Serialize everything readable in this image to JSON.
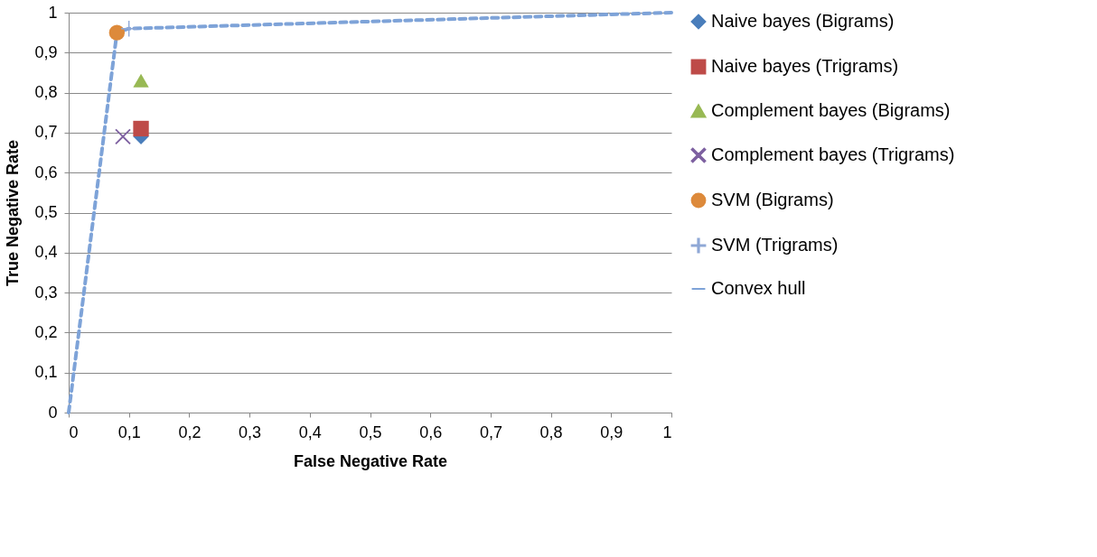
{
  "chart_data": {
    "type": "scatter",
    "xlabel": "False Negative Rate",
    "ylabel": "True Negative Rate",
    "xlim": [
      0,
      1
    ],
    "ylim": [
      0,
      1
    ],
    "xticks": [
      0,
      {
        "value": 0.1,
        "label": "0,1"
      },
      {
        "value": 0.2,
        "label": "0,2"
      },
      {
        "value": 0.3,
        "label": "0,3"
      },
      {
        "value": 0.4,
        "label": "0,4"
      },
      {
        "value": 0.5,
        "label": "0,5"
      },
      {
        "value": 0.6,
        "label": "0,6"
      },
      {
        "value": 0.7,
        "label": "0,7"
      },
      {
        "value": 0.8,
        "label": "0,8"
      },
      {
        "value": 0.9,
        "label": "0,9"
      },
      1
    ],
    "yticks": [
      0,
      {
        "value": 0.1,
        "label": "0,1"
      },
      {
        "value": 0.2,
        "label": "0,2"
      },
      {
        "value": 0.3,
        "label": "0,3"
      },
      {
        "value": 0.4,
        "label": "0,4"
      },
      {
        "value": 0.5,
        "label": "0,5"
      },
      {
        "value": 0.6,
        "label": "0,6"
      },
      {
        "value": 0.7,
        "label": "0,7"
      },
      {
        "value": 0.8,
        "label": "0,8"
      },
      {
        "value": 0.9,
        "label": "0,9"
      },
      1
    ],
    "grid": "y",
    "legend": "right",
    "series": [
      {
        "name": "Naive bayes (Bigrams)",
        "color": "#4a7ebb",
        "marker": "diamond",
        "x": [
          0.12
        ],
        "values": [
          0.69
        ]
      },
      {
        "name": "Naive bayes (Trigrams)",
        "color": "#be4b48",
        "marker": "square",
        "x": [
          0.12
        ],
        "values": [
          0.71
        ]
      },
      {
        "name": "Complement bayes (Bigrams)",
        "color": "#98b954",
        "marker": "triangle",
        "x": [
          0.12
        ],
        "values": [
          0.83
        ]
      },
      {
        "name": "Complement bayes (Trigrams)",
        "color": "#7d60a0",
        "marker": "cross",
        "x": [
          0.09
        ],
        "values": [
          0.69
        ]
      },
      {
        "name": "SVM (Bigrams)",
        "color": "#dd8a3b",
        "marker": "circle",
        "x": [
          0.08
        ],
        "values": [
          0.95
        ]
      },
      {
        "name": "SVM (Trigrams)",
        "color": "#8fa8d6",
        "marker": "plus",
        "x": [
          0.1
        ],
        "values": [
          0.96
        ]
      },
      {
        "name": "Convex hull",
        "type": "line",
        "color": "#7ea3d8",
        "marker": "none",
        "line_style": "dashed",
        "x": [
          0,
          0.08,
          0.1,
          1
        ],
        "values": [
          0,
          0.95,
          0.96,
          1
        ]
      }
    ]
  }
}
